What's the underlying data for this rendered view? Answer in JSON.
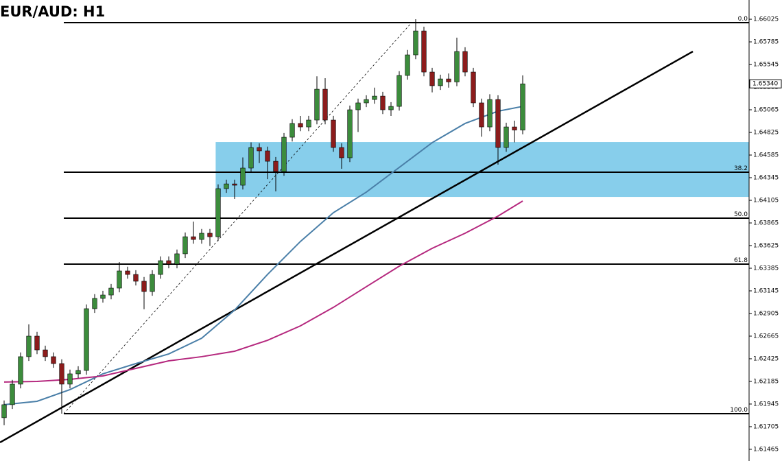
{
  "chart_data": {
    "type": "candlestick",
    "title": "EUR/AUD: H1",
    "ylim": [
      1.61341,
      1.66229
    ],
    "xlim": [
      -0.5,
      90.5
    ],
    "yticks": [
      1.66025,
      1.65785,
      1.65545,
      1.65305,
      1.65065,
      1.64825,
      1.64585,
      1.64345,
      1.64105,
      1.63865,
      1.63625,
      1.63385,
      1.63145,
      1.62905,
      1.62665,
      1.62425,
      1.62185,
      1.61945,
      1.61705,
      1.61465
    ],
    "current_price": {
      "value": 1.6534,
      "label": "1.65340"
    },
    "up_color": "#3c8c3c",
    "down_color": "#8c1c1c",
    "open": [
      1.618,
      1.61938,
      1.62156,
      1.62447,
      1.62665,
      1.62519,
      1.62447,
      1.62374,
      1.62156,
      1.62265,
      1.62301,
      1.62956,
      1.63065,
      1.63101,
      1.63174,
      1.63356,
      1.63319,
      1.63247,
      1.63138,
      1.63319,
      1.63465,
      1.63429,
      1.63538,
      1.63719,
      1.6369,
      1.63756,
      1.63719,
      1.64229,
      1.64279,
      1.64265,
      1.64447,
      1.64665,
      1.64629,
      1.64519,
      1.6441,
      1.64774,
      1.6492,
      1.64883,
      1.64956,
      1.65283,
      1.64956,
      1.64665,
      1.64556,
      1.65065,
      1.65138,
      1.65174,
      1.6521,
      1.65065,
      1.65101,
      1.65429,
      1.65647,
      1.65901,
      1.65465,
      1.6532,
      1.65392,
      1.6536,
      1.65683,
      1.65465,
      1.65138,
      1.64883,
      1.65174,
      1.64665,
      1.64883,
      1.6485
    ],
    "high": [
      1.61983,
      1.62201,
      1.62492,
      1.6279,
      1.6271,
      1.62564,
      1.62492,
      1.62419,
      1.6231,
      1.62346,
      1.63001,
      1.6311,
      1.63146,
      1.63219,
      1.6345,
      1.63401,
      1.63364,
      1.63292,
      1.63364,
      1.6351,
      1.6351,
      1.63583,
      1.63764,
      1.6388,
      1.63801,
      1.63801,
      1.64274,
      1.64324,
      1.64324,
      1.6456,
      1.6472,
      1.6471,
      1.64674,
      1.64564,
      1.64819,
      1.64965,
      1.65,
      1.65001,
      1.6542,
      1.654,
      1.65001,
      1.6471,
      1.6511,
      1.65183,
      1.65219,
      1.653,
      1.65255,
      1.65146,
      1.65474,
      1.657,
      1.66025,
      1.65946,
      1.6551,
      1.65437,
      1.6545,
      1.6583,
      1.65728,
      1.6551,
      1.65183,
      1.6523,
      1.65219,
      1.64928,
      1.6495,
      1.6543
    ],
    "low": [
      1.6172,
      1.61893,
      1.62111,
      1.62402,
      1.62474,
      1.62402,
      1.62329,
      1.61843,
      1.62111,
      1.6222,
      1.62256,
      1.62911,
      1.6302,
      1.63056,
      1.63129,
      1.63274,
      1.63202,
      1.6295,
      1.63093,
      1.63274,
      1.63384,
      1.63384,
      1.63493,
      1.63645,
      1.63645,
      1.6362,
      1.63674,
      1.64184,
      1.6412,
      1.6422,
      1.64402,
      1.645,
      1.6433,
      1.642,
      1.64365,
      1.64729,
      1.64838,
      1.64838,
      1.64911,
      1.64911,
      1.6462,
      1.6444,
      1.64511,
      1.6483,
      1.65093,
      1.65129,
      1.6502,
      1.65,
      1.65056,
      1.65384,
      1.65602,
      1.6542,
      1.6525,
      1.65275,
      1.653,
      1.65315,
      1.6542,
      1.65093,
      1.6478,
      1.64838,
      1.64483,
      1.6462,
      1.6472,
      1.64805
    ],
    "close": [
      1.61938,
      1.62156,
      1.62447,
      1.62665,
      1.62519,
      1.62447,
      1.62374,
      1.62156,
      1.62265,
      1.62301,
      1.62956,
      1.63065,
      1.63101,
      1.63174,
      1.63356,
      1.63319,
      1.63247,
      1.63138,
      1.63319,
      1.63465,
      1.63429,
      1.63538,
      1.63719,
      1.6369,
      1.63756,
      1.63719,
      1.64229,
      1.64279,
      1.64265,
      1.64447,
      1.64665,
      1.64629,
      1.64519,
      1.6441,
      1.64774,
      1.6492,
      1.64883,
      1.64956,
      1.65283,
      1.64956,
      1.64665,
      1.64556,
      1.65065,
      1.65138,
      1.65174,
      1.6521,
      1.65065,
      1.65101,
      1.65429,
      1.65647,
      1.65901,
      1.65465,
      1.6532,
      1.65392,
      1.6536,
      1.65683,
      1.65465,
      1.65138,
      1.64883,
      1.65174,
      1.64665,
      1.64883,
      1.6485,
      1.6534
    ],
    "moving_averages": [
      {
        "color": "#4a7fa8",
        "x": [
          0,
          4,
          8,
          12,
          16,
          20,
          24,
          28,
          32,
          36,
          40,
          44,
          48,
          52,
          56,
          60,
          63
        ],
        "values": [
          1.61938,
          1.61974,
          1.62098,
          1.62265,
          1.62374,
          1.62476,
          1.62643,
          1.62941,
          1.63319,
          1.63669,
          1.63974,
          1.64192,
          1.64454,
          1.64716,
          1.6492,
          1.6505,
          1.65101
        ]
      },
      {
        "color": "#b5287e",
        "x": [
          0,
          4,
          8,
          12,
          16,
          20,
          24,
          28,
          32,
          36,
          40,
          44,
          48,
          52,
          56,
          60,
          63
        ],
        "values": [
          1.62178,
          1.62185,
          1.62207,
          1.62243,
          1.62323,
          1.62403,
          1.62447,
          1.62505,
          1.62621,
          1.62774,
          1.6297,
          1.63189,
          1.63407,
          1.63596,
          1.63756,
          1.63938,
          1.64098
        ]
      }
    ],
    "zone": {
      "x_start": 25.7,
      "top": 1.64723,
      "bottom": 1.64141,
      "color": "#87ceeb"
    },
    "trendline": {
      "x": [
        -0.5,
        83.67
      ],
      "y": [
        1.61538,
        1.65683
      ]
    },
    "fibonacci": {
      "swing": {
        "x": [
          7.25,
          49.5
        ],
        "y": [
          1.61843,
          1.65989
        ]
      },
      "levels": [
        {
          "label": "0.0",
          "price": 1.65989
        },
        {
          "label": "38.2",
          "price": 1.64403
        },
        {
          "label": "50.0",
          "price": 1.63916
        },
        {
          "label": "61.8",
          "price": 1.63429
        },
        {
          "label": "100.0",
          "price": 1.61843
        }
      ]
    }
  }
}
